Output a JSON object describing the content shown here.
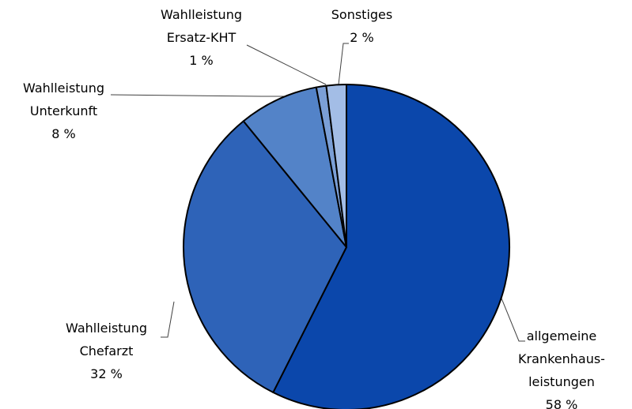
{
  "chart_data": {
    "type": "pie",
    "categories": [
      "allgemeine Krankenhaus-leistungen",
      "Wahlleistung Chefarzt",
      "Wahlleistung Unterkunft",
      "Wahlleistung Ersatz-KHT",
      "Sonstiges"
    ],
    "values": [
      58,
      32,
      8,
      1,
      2
    ],
    "value_labels": [
      "58 %",
      "32 %",
      "8 %",
      "1 %",
      "2 %"
    ],
    "colors": [
      "#0b47ab",
      "#2e63b8",
      "#5383c8",
      "#7b9fd6",
      "#a3bde6"
    ]
  }
}
